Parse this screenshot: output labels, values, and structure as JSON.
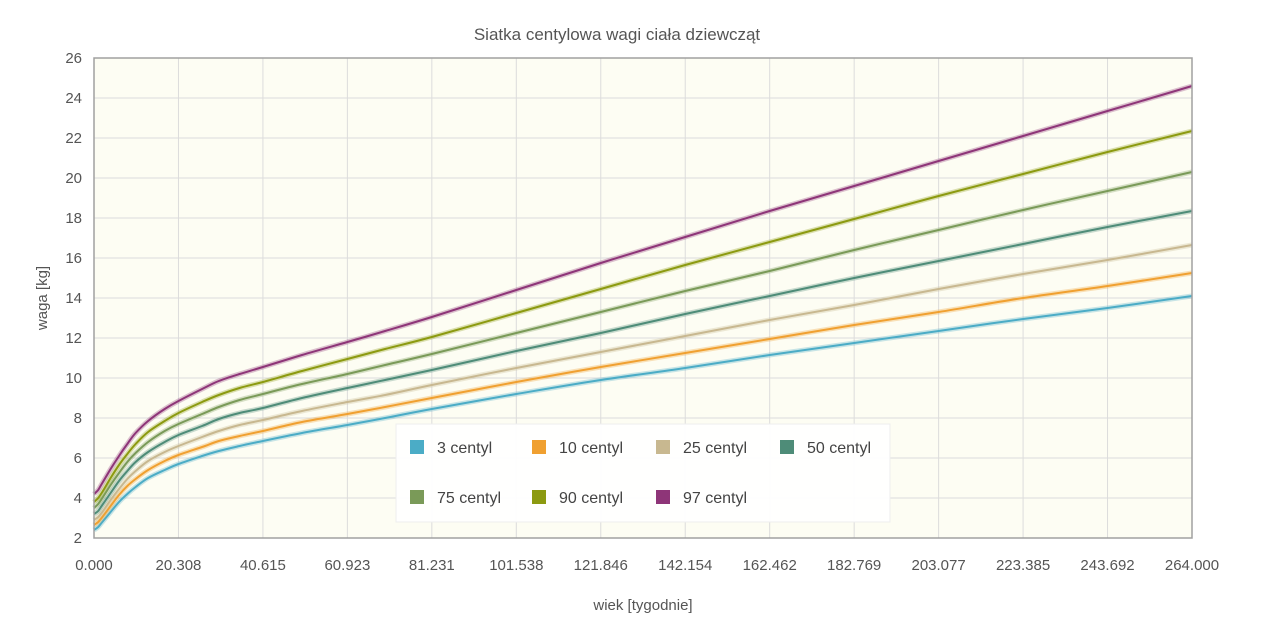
{
  "chart_data": {
    "type": "line",
    "title": "Siatka centylowa wagi ciała dziewcząt",
    "xlabel": "wiek [tygodnie]",
    "ylabel": "waga [kg]",
    "xlim": [
      0,
      264
    ],
    "ylim": [
      2,
      26
    ],
    "x_ticks": [
      "0.000",
      "20.308",
      "40.615",
      "60.923",
      "81.231",
      "101.538",
      "121.846",
      "142.154",
      "162.462",
      "182.769",
      "203.077",
      "223.385",
      "243.692",
      "264.000"
    ],
    "y_ticks": [
      2,
      4,
      6,
      8,
      10,
      12,
      14,
      16,
      18,
      20,
      22,
      24,
      26
    ],
    "grid": true,
    "legend_position": "center-bottom",
    "x": [
      0,
      1,
      2,
      4,
      6,
      8,
      10,
      13,
      17,
      20.308,
      26,
      30,
      35,
      40.615,
      50,
      60.923,
      70,
      81.231,
      101.538,
      121.846,
      142.154,
      162.462,
      182.769,
      203.077,
      223.385,
      243.692,
      264
    ],
    "series": [
      {
        "name": "3 centyl",
        "color": "#4bacc6",
        "values": [
          2.4,
          2.55,
          2.8,
          3.3,
          3.8,
          4.2,
          4.55,
          5.0,
          5.4,
          5.7,
          6.1,
          6.35,
          6.6,
          6.85,
          7.25,
          7.65,
          8.0,
          8.45,
          9.2,
          9.9,
          10.5,
          11.15,
          11.75,
          12.35,
          12.95,
          13.5,
          14.1
        ]
      },
      {
        "name": "10 centyl",
        "color": "#f0a030",
        "values": [
          2.65,
          2.8,
          3.05,
          3.6,
          4.15,
          4.6,
          4.95,
          5.4,
          5.85,
          6.15,
          6.55,
          6.85,
          7.1,
          7.35,
          7.8,
          8.2,
          8.55,
          9.0,
          9.8,
          10.55,
          11.25,
          11.95,
          12.65,
          13.3,
          14.0,
          14.6,
          15.25
        ]
      },
      {
        "name": "25 centyl",
        "color": "#c8b890",
        "values": [
          2.9,
          3.05,
          3.3,
          3.9,
          4.45,
          4.95,
          5.35,
          5.85,
          6.3,
          6.6,
          7.05,
          7.35,
          7.65,
          7.9,
          8.35,
          8.8,
          9.15,
          9.65,
          10.5,
          11.3,
          12.1,
          12.9,
          13.65,
          14.45,
          15.2,
          15.9,
          16.65
        ]
      },
      {
        "name": "50 centyl",
        "color": "#4e8c78",
        "values": [
          3.2,
          3.35,
          3.65,
          4.25,
          4.85,
          5.35,
          5.8,
          6.3,
          6.8,
          7.15,
          7.6,
          7.95,
          8.25,
          8.5,
          9.0,
          9.5,
          9.9,
          10.4,
          11.35,
          12.25,
          13.2,
          14.1,
          15.0,
          15.85,
          16.7,
          17.55,
          18.35
        ]
      },
      {
        "name": "75 centyl",
        "color": "#7a9a58",
        "values": [
          3.5,
          3.7,
          4.0,
          4.65,
          5.25,
          5.8,
          6.25,
          6.8,
          7.35,
          7.7,
          8.2,
          8.55,
          8.9,
          9.2,
          9.7,
          10.2,
          10.65,
          11.2,
          12.25,
          13.3,
          14.35,
          15.35,
          16.4,
          17.4,
          18.4,
          19.35,
          20.3
        ]
      },
      {
        "name": "90 centyl",
        "color": "#8c9a10",
        "values": [
          3.8,
          4.0,
          4.3,
          5.0,
          5.65,
          6.2,
          6.7,
          7.3,
          7.85,
          8.25,
          8.8,
          9.15,
          9.5,
          9.8,
          10.35,
          10.95,
          11.45,
          12.05,
          13.25,
          14.45,
          15.65,
          16.8,
          17.95,
          19.1,
          20.2,
          21.3,
          22.35
        ]
      },
      {
        "name": "97 centyl",
        "color": "#8e3578",
        "values": [
          4.2,
          4.4,
          4.75,
          5.45,
          6.1,
          6.7,
          7.25,
          7.85,
          8.45,
          8.85,
          9.45,
          9.85,
          10.2,
          10.55,
          11.15,
          11.8,
          12.35,
          13.05,
          14.4,
          15.75,
          17.05,
          18.35,
          19.6,
          20.85,
          22.1,
          23.35,
          24.6
        ]
      }
    ]
  }
}
